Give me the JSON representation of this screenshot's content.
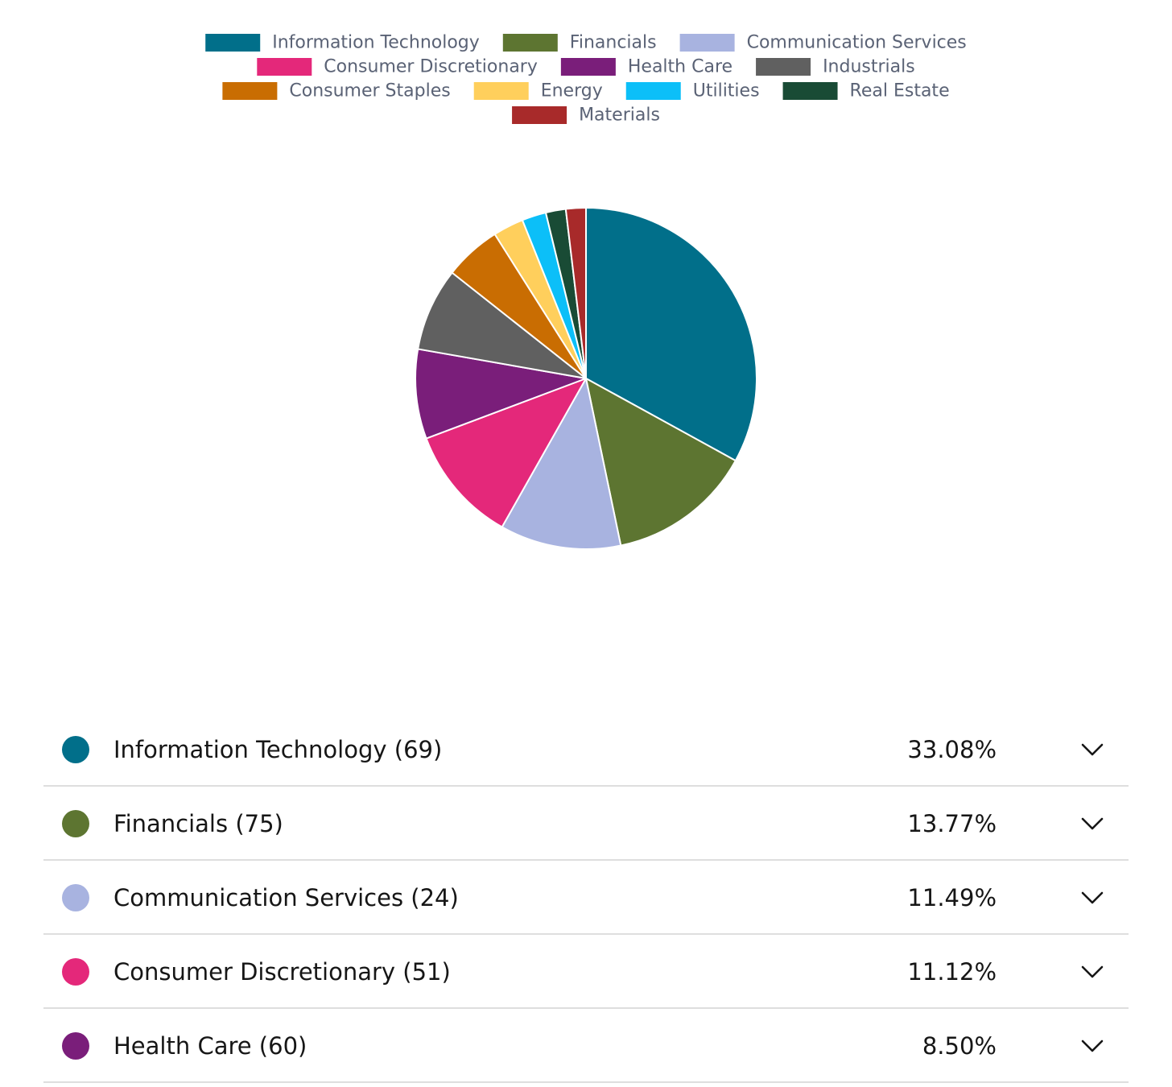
{
  "chart_data": {
    "type": "pie",
    "legend_position": "top",
    "categories": [
      "Information Technology",
      "Financials",
      "Communication Services",
      "Consumer Discretionary",
      "Health Care",
      "Industrials",
      "Consumer Staples",
      "Energy",
      "Utilities",
      "Real Estate",
      "Materials"
    ],
    "values": [
      33.08,
      13.77,
      11.49,
      11.12,
      8.5,
      7.9,
      5.4,
      2.9,
      2.3,
      1.9,
      1.9
    ],
    "colors": [
      "#016f8a",
      "#5d7531",
      "#a8b3e0",
      "#e4287a",
      "#7a1e7a",
      "#606060",
      "#c96d02",
      "#ffcf5c",
      "#0cbff8",
      "#194b35",
      "#a82a2a"
    ]
  },
  "sectors": [
    {
      "name": "Information Technology (69)",
      "percent": "33.08%",
      "color": "#016f8a"
    },
    {
      "name": "Financials (75)",
      "percent": "13.77%",
      "color": "#5d7531"
    },
    {
      "name": "Communication Services (24)",
      "percent": "11.49%",
      "color": "#a8b3e0"
    },
    {
      "name": "Consumer Discretionary (51)",
      "percent": "11.12%",
      "color": "#e4287a"
    },
    {
      "name": "Health Care (60)",
      "percent": "8.50%",
      "color": "#7a1e7a"
    }
  ],
  "icons": {
    "expand": "chevron-down-icon"
  }
}
